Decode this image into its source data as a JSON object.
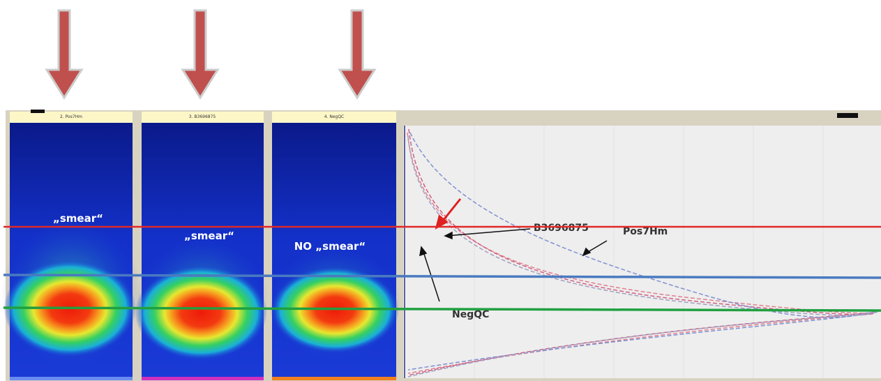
{
  "lanes": [
    {
      "header": "2. Pos7Hm",
      "label": "„smear“"
    },
    {
      "header": "3. B3696875",
      "label": "„smear“"
    },
    {
      "header": "4. NegQC",
      "label": "NO „smear“"
    }
  ],
  "annotations": {
    "sample": "B3696875",
    "positive": "Pos7Hm",
    "negative": "NegQC"
  }
}
